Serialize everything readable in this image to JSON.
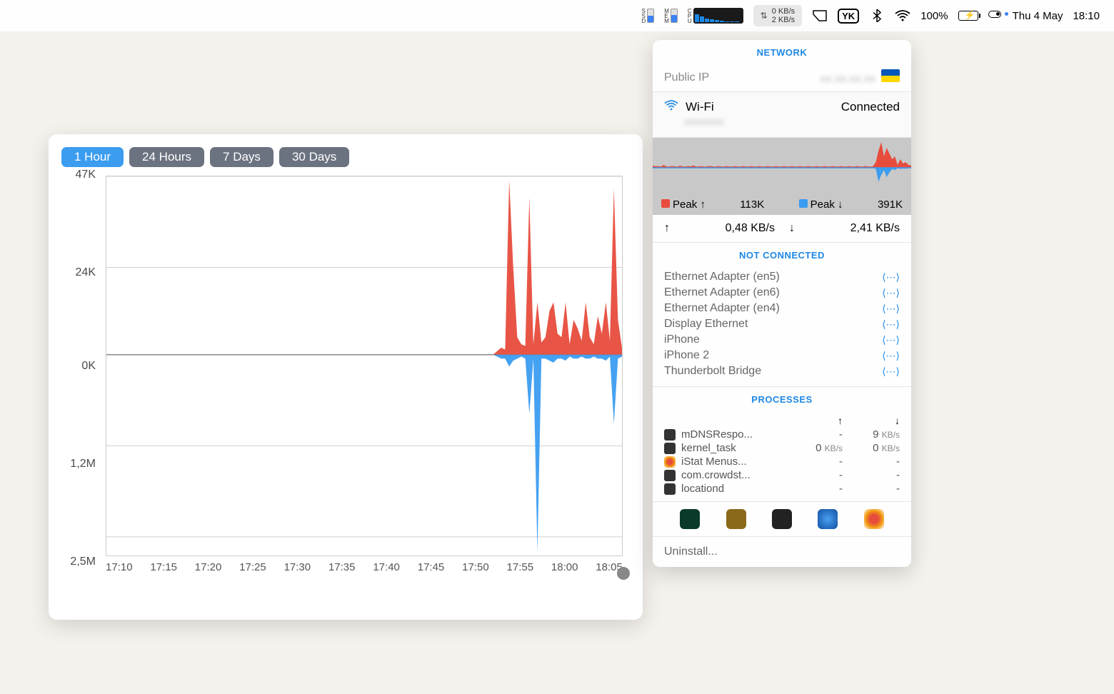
{
  "menubar": {
    "ssd": {
      "label": "S\nS\nD",
      "fill_pct": 50
    },
    "mem": {
      "label": "M\nE\nM",
      "fill_pct": 55
    },
    "cpu": {
      "label": "C\nP\nU",
      "bars": [
        60,
        45,
        30,
        20,
        15,
        10,
        8,
        5,
        3
      ]
    },
    "net": {
      "up": "0 KB/s",
      "down": "2 KB/s"
    },
    "yk": "YK",
    "battery_pct": "100%",
    "date": "Thu 4 May",
    "time": "18:10"
  },
  "chart": {
    "tabs": [
      "1 Hour",
      "24 Hours",
      "7 Days",
      "30 Days"
    ],
    "active_tab": 0,
    "y_ticks": [
      {
        "label": "47K",
        "pos_pct": 0
      },
      {
        "label": "24K",
        "pos_pct": 24
      },
      {
        "label": "0K",
        "pos_pct": 47
      },
      {
        "label": "1,2M",
        "pos_pct": 71
      },
      {
        "label": "2,5M",
        "pos_pct": 95
      }
    ],
    "x_ticks": [
      "17:10",
      "17:15",
      "17:20",
      "17:25",
      "17:30",
      "17:35",
      "17:40",
      "17:45",
      "17:50",
      "17:55",
      "18:00",
      "18:05"
    ],
    "zero_line_pct": 47,
    "up_color": "#e74c3c",
    "down_color": "#3b9cf0",
    "grid_color": "#d0d0d0",
    "border_color": "#bfbfbf",
    "up_series": [
      0,
      0,
      0,
      0,
      0,
      0,
      0,
      0,
      0,
      0,
      0,
      0,
      0,
      0,
      0,
      0,
      0,
      0,
      0,
      0,
      0,
      0,
      0,
      0,
      0,
      0,
      0,
      0,
      0,
      0,
      0,
      0,
      0,
      0,
      0,
      0,
      0,
      0,
      0,
      0,
      0,
      0,
      0,
      0,
      0,
      0,
      0,
      0,
      0,
      0,
      0,
      0,
      0,
      0,
      0,
      0,
      0,
      0,
      0,
      0,
      0,
      0,
      0,
      0,
      0,
      0,
      0,
      0,
      0,
      0,
      0,
      0,
      0,
      0,
      0,
      0,
      0,
      0,
      0,
      0,
      0,
      0,
      0,
      0,
      0,
      0,
      0,
      0,
      0,
      0,
      0,
      0,
      0,
      0,
      0,
      0,
      0,
      0.02,
      0.04,
      0.03,
      1.0,
      0.5,
      0.1,
      0.06,
      0.05,
      0.9,
      0.06,
      0.3,
      0.07,
      0.1,
      0.25,
      0.3,
      0.12,
      0.1,
      0.3,
      0.06,
      0.2,
      0.15,
      0.08,
      0.3,
      0.1,
      0.06,
      0.22,
      0.12,
      0.3,
      0.08,
      0.95,
      0.2,
      0.04
    ],
    "down_series": [
      0,
      0,
      0,
      0,
      0,
      0,
      0,
      0,
      0,
      0,
      0,
      0,
      0,
      0,
      0,
      0,
      0,
      0,
      0,
      0,
      0,
      0,
      0,
      0,
      0,
      0,
      0,
      0,
      0,
      0,
      0,
      0,
      0,
      0,
      0,
      0,
      0,
      0,
      0,
      0,
      0,
      0,
      0,
      0,
      0,
      0,
      0,
      0,
      0,
      0,
      0,
      0,
      0,
      0,
      0,
      0,
      0,
      0,
      0,
      0,
      0,
      0,
      0,
      0,
      0,
      0,
      0,
      0,
      0,
      0,
      0,
      0,
      0,
      0,
      0,
      0,
      0,
      0,
      0,
      0,
      0,
      0,
      0,
      0,
      0,
      0,
      0,
      0,
      0,
      0,
      0,
      0,
      0,
      0,
      0,
      0,
      0,
      0.01,
      0.02,
      0.02,
      0.06,
      0.03,
      0.02,
      0.01,
      0.02,
      0.3,
      0.02,
      1.0,
      0.02,
      0.02,
      0.03,
      0.04,
      0.02,
      0.02,
      0.03,
      0.01,
      0.02,
      0.02,
      0.01,
      0.02,
      0.02,
      0.01,
      0.02,
      0.02,
      0.03,
      0.01,
      0.35,
      0.02,
      0.01
    ]
  },
  "network": {
    "header": "NETWORK",
    "public_ip_label": "Public IP",
    "public_ip_value": "xx.xx.xx.xx",
    "wifi": {
      "name": "Wi-Fi",
      "status": "Connected",
      "ssid": "xxxxxxxx"
    },
    "peak_up_label": "Peak ↑",
    "peak_up_value": "113K",
    "peak_down_label": "Peak ↓",
    "peak_down_value": "391K",
    "current_up": "0,48 KB/s",
    "current_down": "2,41 KB/s",
    "not_connected_header": "NOT CONNECTED",
    "adapters": [
      "Ethernet Adapter (en5)",
      "Ethernet Adapter (en6)",
      "Ethernet Adapter (en4)",
      "Display Ethernet",
      "iPhone",
      "iPhone 2",
      "Thunderbolt Bridge"
    ],
    "processes_header": "PROCESSES",
    "processes": [
      {
        "name": "mDNSRespo...",
        "up": "-",
        "down": "9",
        "down_unit": "KB/s",
        "icon": "term"
      },
      {
        "name": "kernel_task",
        "up": "0",
        "up_unit": "KB/s",
        "down": "0",
        "down_unit": "KB/s",
        "icon": "term"
      },
      {
        "name": "iStat Menus...",
        "up": "-",
        "down": "-",
        "icon": "istat"
      },
      {
        "name": "com.crowdst...",
        "up": "-",
        "down": "-",
        "icon": "term"
      },
      {
        "name": "locationd",
        "up": "-",
        "down": "-",
        "icon": "term"
      }
    ],
    "app_icons": [
      {
        "bg": "#0a3a2a"
      },
      {
        "bg": "#8a6a1a"
      },
      {
        "bg": "#222222"
      },
      {
        "bg": "radial-gradient(circle,#4a9ff0,#1050a0)"
      },
      {
        "bg": "radial-gradient(circle,#e74c3c 30%,#f39c12 60%,#fff 100%)"
      }
    ],
    "uninstall": "Uninstall..."
  },
  "mini_chart": {
    "up_color": "#e74c3c",
    "down_color": "#3b9cf0",
    "up_series": [
      0.08,
      0.05,
      0.06,
      0.04,
      0.1,
      0.05,
      0.04,
      0.06,
      0.05,
      0.04,
      0.07,
      0.05,
      0.04,
      0.06,
      0.05,
      0.08,
      0.04,
      0.05,
      0.06,
      0.04,
      0.05,
      0.06,
      0.05,
      0.04,
      0.06,
      0.05,
      0.04,
      0.06,
      0.05,
      0.04,
      0.06,
      0.05,
      0.04,
      0.06,
      0.05,
      0.04,
      0.06,
      0.05,
      0.04,
      0.06,
      0.05,
      0.04,
      0.06,
      0.05,
      0.04,
      0.06,
      0.05,
      0.04,
      0.06,
      0.05,
      0.04,
      0.06,
      0.05,
      0.04,
      0.06,
      0.05,
      0.04,
      0.06,
      0.05,
      0.04,
      0.06,
      0.05,
      0.04,
      0.06,
      0.05,
      0.04,
      0.06,
      0.05,
      0.04,
      0.06,
      0.05,
      0.04,
      0.06,
      0.05,
      0.04,
      0.06,
      0.05,
      0.04,
      0.06,
      0.05,
      0.04,
      0.06,
      0.2,
      0.6,
      0.9,
      0.4,
      0.7,
      0.5,
      0.3,
      0.4,
      0.1,
      0.3,
      0.15,
      0.2,
      0.1,
      0.08
    ],
    "down_series": [
      0.02,
      0.01,
      0.02,
      0.01,
      0.02,
      0.01,
      0.02,
      0.01,
      0.02,
      0.01,
      0.02,
      0.01,
      0.02,
      0.01,
      0.02,
      0.01,
      0.02,
      0.01,
      0.02,
      0.01,
      0.02,
      0.01,
      0.02,
      0.01,
      0.02,
      0.01,
      0.02,
      0.01,
      0.02,
      0.01,
      0.02,
      0.01,
      0.02,
      0.01,
      0.02,
      0.01,
      0.02,
      0.01,
      0.02,
      0.01,
      0.02,
      0.01,
      0.02,
      0.01,
      0.02,
      0.01,
      0.02,
      0.01,
      0.02,
      0.01,
      0.02,
      0.01,
      0.02,
      0.01,
      0.02,
      0.01,
      0.02,
      0.01,
      0.02,
      0.01,
      0.02,
      0.01,
      0.02,
      0.01,
      0.02,
      0.01,
      0.02,
      0.01,
      0.02,
      0.01,
      0.02,
      0.01,
      0.02,
      0.01,
      0.02,
      0.01,
      0.02,
      0.01,
      0.02,
      0.01,
      0.02,
      0.01,
      0.05,
      0.6,
      0.3,
      0.1,
      0.4,
      0.2,
      0.05,
      0.1,
      0.02,
      0.05,
      0.03,
      0.04,
      0.02,
      0.02
    ]
  }
}
